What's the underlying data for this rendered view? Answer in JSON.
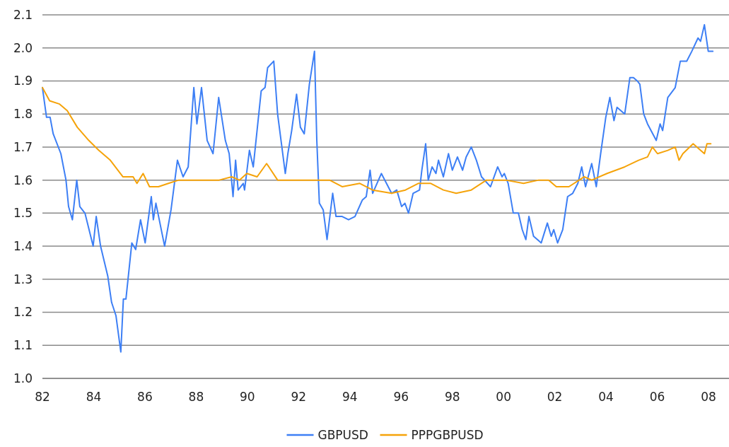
{
  "chart_data": {
    "type": "line",
    "xlim": [
      1982,
      2008.8
    ],
    "ylim": [
      1.0,
      2.1
    ],
    "xticks": [
      {
        "value": 1982,
        "label": "82"
      },
      {
        "value": 1984,
        "label": "84"
      },
      {
        "value": 1986,
        "label": "86"
      },
      {
        "value": 1988,
        "label": "88"
      },
      {
        "value": 1990,
        "label": "90"
      },
      {
        "value": 1992,
        "label": "92"
      },
      {
        "value": 1994,
        "label": "94"
      },
      {
        "value": 1996,
        "label": "96"
      },
      {
        "value": 1998,
        "label": "98"
      },
      {
        "value": 2000,
        "label": "00"
      },
      {
        "value": 2002,
        "label": "02"
      },
      {
        "value": 2004,
        "label": "04"
      },
      {
        "value": 2006,
        "label": "06"
      },
      {
        "value": 2008,
        "label": "08"
      }
    ],
    "yticks": [
      {
        "value": 1.0,
        "label": "1.0"
      },
      {
        "value": 1.1,
        "label": "1.1"
      },
      {
        "value": 1.2,
        "label": "1.2"
      },
      {
        "value": 1.3,
        "label": "1.3"
      },
      {
        "value": 1.4,
        "label": "1.4"
      },
      {
        "value": 1.5,
        "label": "1.5"
      },
      {
        "value": 1.6,
        "label": "1.6"
      },
      {
        "value": 1.7,
        "label": "1.7"
      },
      {
        "value": 1.8,
        "label": "1.8"
      },
      {
        "value": 1.9,
        "label": "1.9"
      },
      {
        "value": 2.0,
        "label": "2.0"
      },
      {
        "value": 2.1,
        "label": "2.1"
      }
    ],
    "grid": "y",
    "legend": "bottom",
    "marker": "none",
    "line_style": "solid",
    "series": [
      {
        "name": "GBPUSD",
        "color": "#3d7ff5",
        "x": [
          1982.0,
          1982.16,
          1982.3,
          1982.42,
          1982.72,
          1982.92,
          1983.02,
          1983.17,
          1983.34,
          1983.46,
          1983.66,
          1983.98,
          1984.1,
          1984.27,
          1984.55,
          1984.7,
          1984.87,
          1985.06,
          1985.16,
          1985.26,
          1985.49,
          1985.64,
          1985.83,
          1986.01,
          1986.25,
          1986.33,
          1986.43,
          1986.77,
          1987.02,
          1987.27,
          1987.49,
          1987.69,
          1987.91,
          1988.03,
          1988.21,
          1988.43,
          1988.66,
          1988.88,
          1989.14,
          1989.29,
          1989.44,
          1989.54,
          1989.64,
          1989.84,
          1989.89,
          1990.08,
          1990.23,
          1990.54,
          1990.69,
          1990.79,
          1991.03,
          1991.18,
          1991.33,
          1991.48,
          1991.58,
          1991.73,
          1991.92,
          1992.07,
          1992.22,
          1992.42,
          1992.62,
          1992.71,
          1992.81,
          1992.96,
          1993.11,
          1993.33,
          1993.46,
          1993.7,
          1993.95,
          1994.2,
          1994.49,
          1994.64,
          1994.79,
          1994.89,
          1995.23,
          1995.43,
          1995.63,
          1995.83,
          1996.02,
          1996.15,
          1996.29,
          1996.47,
          1996.72,
          1996.81,
          1996.96,
          1997.06,
          1997.21,
          1997.36,
          1997.46,
          1997.65,
          1997.85,
          1998.0,
          1998.2,
          1998.4,
          1998.54,
          1998.74,
          1998.94,
          1999.14,
          1999.49,
          1999.77,
          1999.94,
          2000.03,
          2000.18,
          2000.38,
          2000.58,
          2000.73,
          2000.87,
          2000.99,
          2001.17,
          2001.47,
          2001.71,
          2001.86,
          2001.96,
          2002.11,
          2002.31,
          2002.5,
          2002.7,
          2002.9,
          2003.05,
          2003.2,
          2003.44,
          2003.62,
          2003.79,
          2003.99,
          2004.15,
          2004.31,
          2004.43,
          2004.73,
          2004.93,
          2005.07,
          2005.22,
          2005.32,
          2005.47,
          2005.62,
          2005.96,
          2006.11,
          2006.21,
          2006.41,
          2006.7,
          2006.9,
          2007.15,
          2007.35,
          2007.59,
          2007.69,
          2007.84,
          2007.99,
          2008.17
        ],
        "values": [
          1.88,
          1.79,
          1.79,
          1.74,
          1.68,
          1.6,
          1.52,
          1.48,
          1.6,
          1.52,
          1.5,
          1.4,
          1.49,
          1.4,
          1.31,
          1.23,
          1.19,
          1.08,
          1.24,
          1.24,
          1.41,
          1.39,
          1.48,
          1.41,
          1.55,
          1.48,
          1.53,
          1.4,
          1.51,
          1.66,
          1.61,
          1.64,
          1.88,
          1.77,
          1.88,
          1.72,
          1.68,
          1.85,
          1.72,
          1.68,
          1.55,
          1.66,
          1.57,
          1.59,
          1.57,
          1.69,
          1.64,
          1.87,
          1.88,
          1.94,
          1.96,
          1.8,
          1.71,
          1.62,
          1.68,
          1.75,
          1.86,
          1.76,
          1.74,
          1.89,
          1.99,
          1.72,
          1.53,
          1.51,
          1.42,
          1.56,
          1.49,
          1.49,
          1.48,
          1.49,
          1.54,
          1.55,
          1.63,
          1.56,
          1.62,
          1.59,
          1.56,
          1.57,
          1.52,
          1.53,
          1.5,
          1.56,
          1.57,
          1.63,
          1.71,
          1.6,
          1.64,
          1.62,
          1.66,
          1.61,
          1.68,
          1.63,
          1.67,
          1.63,
          1.67,
          1.7,
          1.66,
          1.61,
          1.58,
          1.64,
          1.61,
          1.62,
          1.59,
          1.5,
          1.5,
          1.45,
          1.42,
          1.49,
          1.43,
          1.41,
          1.47,
          1.43,
          1.45,
          1.41,
          1.45,
          1.55,
          1.56,
          1.59,
          1.64,
          1.58,
          1.65,
          1.58,
          1.68,
          1.79,
          1.85,
          1.78,
          1.82,
          1.8,
          1.91,
          1.91,
          1.9,
          1.89,
          1.8,
          1.77,
          1.72,
          1.77,
          1.75,
          1.85,
          1.88,
          1.96,
          1.96,
          1.99,
          2.03,
          2.02,
          2.07,
          1.99,
          1.99
        ]
      },
      {
        "name": "PPPGBPUSD",
        "color": "#f5a30a",
        "x": [
          1982.0,
          1982.28,
          1982.67,
          1982.97,
          1983.36,
          1983.81,
          1984.2,
          1984.65,
          1985.14,
          1985.54,
          1985.69,
          1985.93,
          1986.18,
          1986.53,
          1986.92,
          1987.32,
          1988.1,
          1988.9,
          1989.39,
          1989.69,
          1989.98,
          1990.38,
          1990.75,
          1990.84,
          1991.18,
          1991.53,
          1992.22,
          1992.62,
          1993.21,
          1993.7,
          1994.39,
          1994.89,
          1995.63,
          1996.17,
          1996.67,
          1997.16,
          1997.65,
          1998.15,
          1998.74,
          1999.33,
          1999.59,
          2000.08,
          2000.78,
          2001.37,
          2001.76,
          2002.06,
          2002.55,
          2003.15,
          2003.44,
          2004.04,
          2004.73,
          2005.27,
          2005.62,
          2005.81,
          2006.01,
          2006.41,
          2006.7,
          2006.85,
          2007.0,
          2007.4,
          2007.84,
          2007.94,
          2008.09
        ],
        "values": [
          1.88,
          1.84,
          1.83,
          1.81,
          1.76,
          1.72,
          1.69,
          1.66,
          1.61,
          1.61,
          1.59,
          1.62,
          1.58,
          1.58,
          1.59,
          1.6,
          1.6,
          1.6,
          1.61,
          1.6,
          1.62,
          1.61,
          1.65,
          1.64,
          1.6,
          1.6,
          1.6,
          1.6,
          1.6,
          1.58,
          1.59,
          1.57,
          1.56,
          1.57,
          1.59,
          1.59,
          1.57,
          1.56,
          1.57,
          1.6,
          1.6,
          1.6,
          1.59,
          1.6,
          1.6,
          1.58,
          1.58,
          1.61,
          1.6,
          1.62,
          1.64,
          1.66,
          1.67,
          1.7,
          1.68,
          1.69,
          1.7,
          1.66,
          1.68,
          1.71,
          1.68,
          1.71,
          1.71
        ]
      }
    ]
  }
}
